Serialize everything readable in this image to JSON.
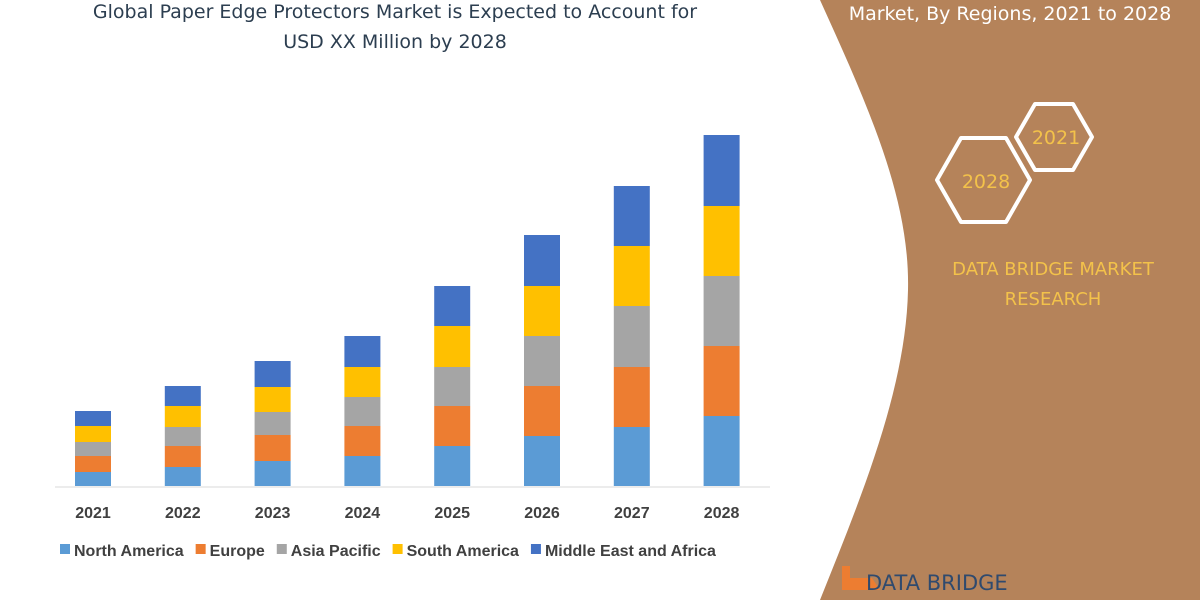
{
  "chart_data": {
    "type": "bar",
    "stacked": true,
    "title": "Global Paper Edge Protectors Market is Expected to Account for USD XX Million by 2028",
    "title_lines": [
      "Global Paper Edge Protectors Market is Expected to Account for",
      "USD XX Million by 2028"
    ],
    "categories": [
      "2021",
      "2022",
      "2023",
      "2024",
      "2025",
      "2026",
      "2027",
      "2028"
    ],
    "series": [
      {
        "name": "North America",
        "color": "#5b9bd5",
        "values": [
          14,
          19,
          25,
          30,
          40,
          50,
          59,
          70
        ]
      },
      {
        "name": "Europe",
        "color": "#ed7d31",
        "values": [
          16,
          21,
          26,
          30,
          40,
          50,
          60,
          70
        ]
      },
      {
        "name": "Asia Pacific",
        "color": "#a5a5a5",
        "values": [
          14,
          19,
          23,
          29,
          39,
          50,
          61,
          70
        ]
      },
      {
        "name": "South America",
        "color": "#ffc000",
        "values": [
          16,
          21,
          25,
          30,
          41,
          50,
          60,
          70
        ]
      },
      {
        "name": "Middle East and Africa",
        "color": "#4472c4",
        "values": [
          15,
          20,
          26,
          31,
          40,
          51,
          60,
          71
        ]
      }
    ],
    "xlabel": "",
    "ylabel": "",
    "y_axis_shown": false,
    "grid": false,
    "legend": "bottom"
  },
  "side_panel": {
    "title": "Market, By Regions, 2021 to 2028",
    "hex_years": [
      "2021",
      "2028"
    ],
    "brand_lines": [
      "DATA BRIDGE MARKET",
      "RESEARCH"
    ],
    "panel_color": "#b5835a",
    "accent_color": "#f3c24a"
  },
  "logo": {
    "text": "DATA BRIDGE"
  }
}
